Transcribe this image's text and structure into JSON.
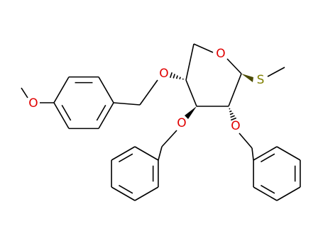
{
  "atoms": [
    {
      "label": "O"
    },
    {
      "label": "S"
    },
    {
      "label": "O"
    },
    {
      "label": "O"
    },
    {
      "label": "O"
    },
    {
      "label": "O"
    }
  ]
}
